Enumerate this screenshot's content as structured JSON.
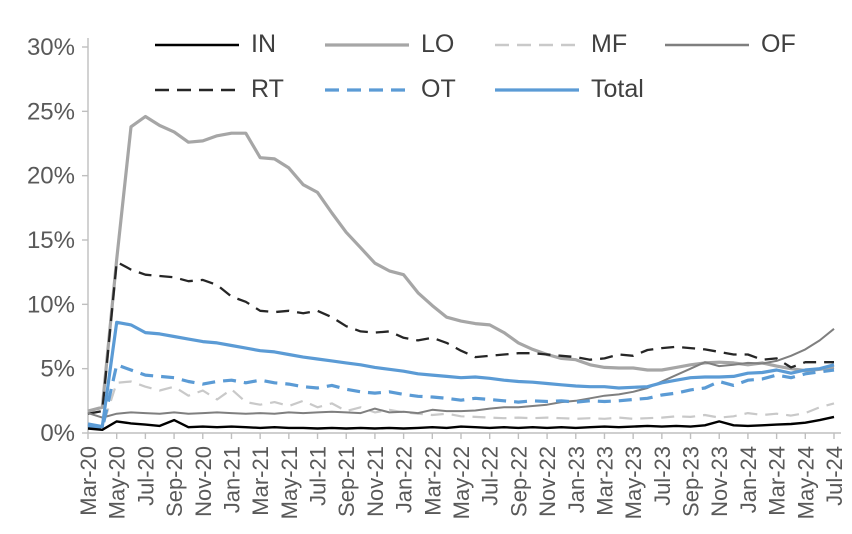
{
  "chart_data": {
    "type": "line",
    "title": "",
    "grid": false,
    "legend_position": "top",
    "legend_rows": [
      [
        "IN",
        "LO",
        "MF",
        "OF"
      ],
      [
        "RT",
        "OT",
        "Total"
      ]
    ],
    "ylim": [
      0,
      30
    ],
    "y_tick_labels": [
      "0%",
      "5%",
      "10%",
      "15%",
      "20%",
      "25%",
      "30%"
    ],
    "y_tick_values": [
      0,
      5,
      10,
      15,
      20,
      25,
      30
    ],
    "x_tick_labels": [
      "Mar-20",
      "May-20",
      "Jul-20",
      "Sep-20",
      "Nov-20",
      "Jan-21",
      "Mar-21",
      "May-21",
      "Jul-21",
      "Sep-21",
      "Nov-21",
      "Jan-22",
      "Mar-22",
      "May-22",
      "Jul-22",
      "Sep-22",
      "Nov-22",
      "Jan-23",
      "Mar-23",
      "May-23",
      "Jul-23",
      "Sep-23",
      "Nov-23",
      "Jan-24",
      "Mar-24",
      "May-24",
      "Jul-24"
    ],
    "x_resolution": "monthly",
    "axis_color": "#bfbfbf",
    "axis_text_color": "#595959",
    "series": [
      {
        "name": "IN",
        "color": "#000000",
        "style": "solid",
        "width": 2.4,
        "values": [
          0.35,
          0.25,
          0.9,
          0.75,
          0.65,
          0.55,
          1.0,
          0.45,
          0.5,
          0.45,
          0.5,
          0.45,
          0.4,
          0.45,
          0.4,
          0.4,
          0.35,
          0.4,
          0.35,
          0.4,
          0.35,
          0.4,
          0.35,
          0.4,
          0.45,
          0.4,
          0.5,
          0.45,
          0.4,
          0.45,
          0.4,
          0.45,
          0.4,
          0.45,
          0.4,
          0.45,
          0.5,
          0.45,
          0.5,
          0.55,
          0.5,
          0.55,
          0.5,
          0.6,
          0.9,
          0.6,
          0.55,
          0.6,
          0.65,
          0.7,
          0.8,
          1.0,
          1.25
        ]
      },
      {
        "name": "LO",
        "color": "#a6a6a6",
        "style": "solid",
        "width": 3.2,
        "values": [
          1.7,
          2.0,
          13.5,
          23.8,
          24.6,
          23.9,
          23.4,
          22.6,
          22.7,
          23.1,
          23.3,
          23.3,
          21.4,
          21.3,
          20.6,
          19.3,
          18.7,
          17.1,
          15.6,
          14.4,
          13.2,
          12.6,
          12.3,
          10.9,
          9.9,
          9.0,
          8.7,
          8.5,
          8.4,
          7.8,
          7.0,
          6.5,
          6.1,
          5.8,
          5.7,
          5.3,
          5.1,
          5.05,
          5.05,
          4.9,
          4.9,
          5.1,
          5.3,
          5.45,
          5.5,
          5.45,
          5.3,
          5.45,
          5.2,
          5.0,
          4.85,
          4.95,
          5.1
        ]
      },
      {
        "name": "MF",
        "color": "#c9c9c9",
        "style": "dashed",
        "width": 2.2,
        "values": [
          0.5,
          0.45,
          3.9,
          4.0,
          3.6,
          3.3,
          3.6,
          2.9,
          3.3,
          2.6,
          3.4,
          2.4,
          2.2,
          2.4,
          2.1,
          2.5,
          2.0,
          2.3,
          1.7,
          2.0,
          1.6,
          1.8,
          1.6,
          1.5,
          1.4,
          1.5,
          1.3,
          1.25,
          1.2,
          1.15,
          1.2,
          1.15,
          1.2,
          1.15,
          1.1,
          1.15,
          1.1,
          1.2,
          1.1,
          1.15,
          1.2,
          1.3,
          1.25,
          1.4,
          1.2,
          1.3,
          1.55,
          1.4,
          1.5,
          1.35,
          1.55,
          2.0,
          2.3
        ]
      },
      {
        "name": "OF",
        "color": "#7f7f7f",
        "style": "solid",
        "width": 2.0,
        "values": [
          1.55,
          1.2,
          1.5,
          1.6,
          1.55,
          1.5,
          1.6,
          1.5,
          1.55,
          1.6,
          1.55,
          1.5,
          1.55,
          1.5,
          1.6,
          1.55,
          1.6,
          1.65,
          1.6,
          1.55,
          1.9,
          1.6,
          1.65,
          1.55,
          1.8,
          1.7,
          1.7,
          1.75,
          1.9,
          2.0,
          2.0,
          2.1,
          2.2,
          2.4,
          2.5,
          2.7,
          2.9,
          3.0,
          3.2,
          3.5,
          4.0,
          4.5,
          5.0,
          5.5,
          5.2,
          5.3,
          5.45,
          5.4,
          5.6,
          6.0,
          6.5,
          7.2,
          8.1
        ]
      },
      {
        "name": "RT",
        "color": "#262626",
        "style": "dashed",
        "width": 2.3,
        "values": [
          1.5,
          1.7,
          13.3,
          12.7,
          12.3,
          12.2,
          12.1,
          11.8,
          11.9,
          11.5,
          10.6,
          10.2,
          9.5,
          9.4,
          9.5,
          9.3,
          9.5,
          9.0,
          8.3,
          7.9,
          7.8,
          7.9,
          7.4,
          7.2,
          7.4,
          7.0,
          6.4,
          5.9,
          6.0,
          6.1,
          6.2,
          6.2,
          6.1,
          6.0,
          5.9,
          5.7,
          5.8,
          6.1,
          6.0,
          6.45,
          6.6,
          6.7,
          6.6,
          6.5,
          6.3,
          6.1,
          6.1,
          5.7,
          5.8,
          5.1,
          5.5,
          5.5,
          5.5
        ]
      },
      {
        "name": "OT",
        "color": "#5b9bd5",
        "style": "dashed",
        "width": 3.2,
        "values": [
          0.5,
          0.35,
          5.3,
          4.9,
          4.5,
          4.4,
          4.3,
          4.0,
          3.8,
          4.0,
          4.1,
          3.9,
          4.1,
          3.9,
          3.8,
          3.6,
          3.5,
          3.7,
          3.4,
          3.2,
          3.1,
          3.2,
          3.0,
          2.85,
          2.8,
          2.7,
          2.55,
          2.7,
          2.6,
          2.5,
          2.4,
          2.5,
          2.45,
          2.5,
          2.4,
          2.5,
          2.45,
          2.5,
          2.6,
          2.7,
          2.95,
          3.1,
          3.35,
          3.5,
          4.0,
          3.7,
          4.1,
          4.2,
          4.5,
          4.3,
          4.6,
          4.75,
          4.9
        ]
      },
      {
        "name": "Total",
        "color": "#5b9bd5",
        "style": "solid",
        "width": 3.2,
        "values": [
          0.7,
          0.5,
          8.6,
          8.4,
          7.8,
          7.7,
          7.5,
          7.3,
          7.1,
          7.0,
          6.8,
          6.6,
          6.4,
          6.3,
          6.1,
          5.9,
          5.75,
          5.6,
          5.45,
          5.3,
          5.1,
          4.95,
          4.8,
          4.6,
          4.5,
          4.4,
          4.3,
          4.35,
          4.25,
          4.1,
          4.0,
          3.95,
          3.85,
          3.75,
          3.65,
          3.6,
          3.6,
          3.5,
          3.55,
          3.6,
          3.9,
          4.1,
          4.3,
          4.35,
          4.35,
          4.4,
          4.65,
          4.7,
          4.9,
          4.65,
          4.9,
          5.0,
          5.3
        ]
      }
    ]
  }
}
